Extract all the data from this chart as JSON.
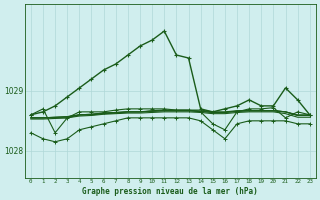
{
  "title": "Graphe pression niveau de la mer (hPa)",
  "background_color": "#d0eeee",
  "grid_color": "#b0d8d8",
  "line_color": "#1a5c1a",
  "xlim": [
    -0.5,
    23.5
  ],
  "ylim": [
    1027.55,
    1030.45
  ],
  "yticks": [
    1028,
    1029
  ],
  "xticks": [
    0,
    1,
    2,
    3,
    4,
    5,
    6,
    7,
    8,
    9,
    10,
    11,
    12,
    13,
    14,
    15,
    16,
    17,
    18,
    19,
    20,
    21,
    22,
    23
  ],
  "main_line": [
    1028.6,
    1028.65,
    1028.75,
    1028.9,
    1029.05,
    1029.2,
    1029.35,
    1029.45,
    1029.6,
    1029.75,
    1029.85,
    1030.0,
    1029.6,
    1029.55,
    1028.7,
    1028.65,
    1028.7,
    1028.75,
    1028.85,
    1028.75,
    1028.75,
    1029.05,
    1028.85,
    1028.6
  ],
  "flat_line1": [
    1028.55,
    1028.55,
    1028.55,
    1028.55,
    1028.6,
    1028.6,
    1028.62,
    1028.63,
    1028.65,
    1028.65,
    1028.67,
    1028.68,
    1028.68,
    1028.68,
    1028.68,
    1028.65,
    1028.65,
    1028.67,
    1028.67,
    1028.67,
    1028.67,
    1028.65,
    1028.6,
    1028.6
  ],
  "flat_line2": [
    1028.55,
    1028.55,
    1028.56,
    1028.57,
    1028.6,
    1028.61,
    1028.63,
    1028.64,
    1028.65,
    1028.65,
    1028.66,
    1028.67,
    1028.67,
    1028.67,
    1028.66,
    1028.64,
    1028.64,
    1028.66,
    1028.67,
    1028.67,
    1028.67,
    1028.65,
    1028.59,
    1028.59
  ],
  "flat_line3": [
    1028.55,
    1028.55,
    1028.56,
    1028.57,
    1028.6,
    1028.61,
    1028.63,
    1028.64,
    1028.65,
    1028.65,
    1028.66,
    1028.67,
    1028.67,
    1028.67,
    1028.66,
    1028.64,
    1028.64,
    1028.66,
    1028.67,
    1028.67,
    1028.67,
    1028.65,
    1028.59,
    1028.59
  ],
  "flat_line4": [
    1028.53,
    1028.53,
    1028.54,
    1028.55,
    1028.58,
    1028.59,
    1028.61,
    1028.62,
    1028.63,
    1028.63,
    1028.64,
    1028.65,
    1028.65,
    1028.65,
    1028.64,
    1028.62,
    1028.62,
    1028.64,
    1028.65,
    1028.65,
    1028.65,
    1028.62,
    1028.56,
    1028.56
  ],
  "fluct_line": [
    1028.6,
    1028.7,
    1028.3,
    1028.55,
    1028.65,
    1028.65,
    1028.65,
    1028.68,
    1028.7,
    1028.7,
    1028.7,
    1028.7,
    1028.68,
    1028.68,
    1028.65,
    1028.45,
    1028.35,
    1028.65,
    1028.7,
    1028.7,
    1028.72,
    1028.55,
    1028.65,
    1028.6
  ],
  "bottom_line": [
    1028.3,
    1028.2,
    1028.15,
    1028.2,
    1028.35,
    1028.4,
    1028.45,
    1028.5,
    1028.55,
    1028.55,
    1028.55,
    1028.55,
    1028.55,
    1028.55,
    1028.5,
    1028.35,
    1028.2,
    1028.45,
    1028.5,
    1028.5,
    1028.5,
    1028.5,
    1028.45,
    1028.45
  ]
}
